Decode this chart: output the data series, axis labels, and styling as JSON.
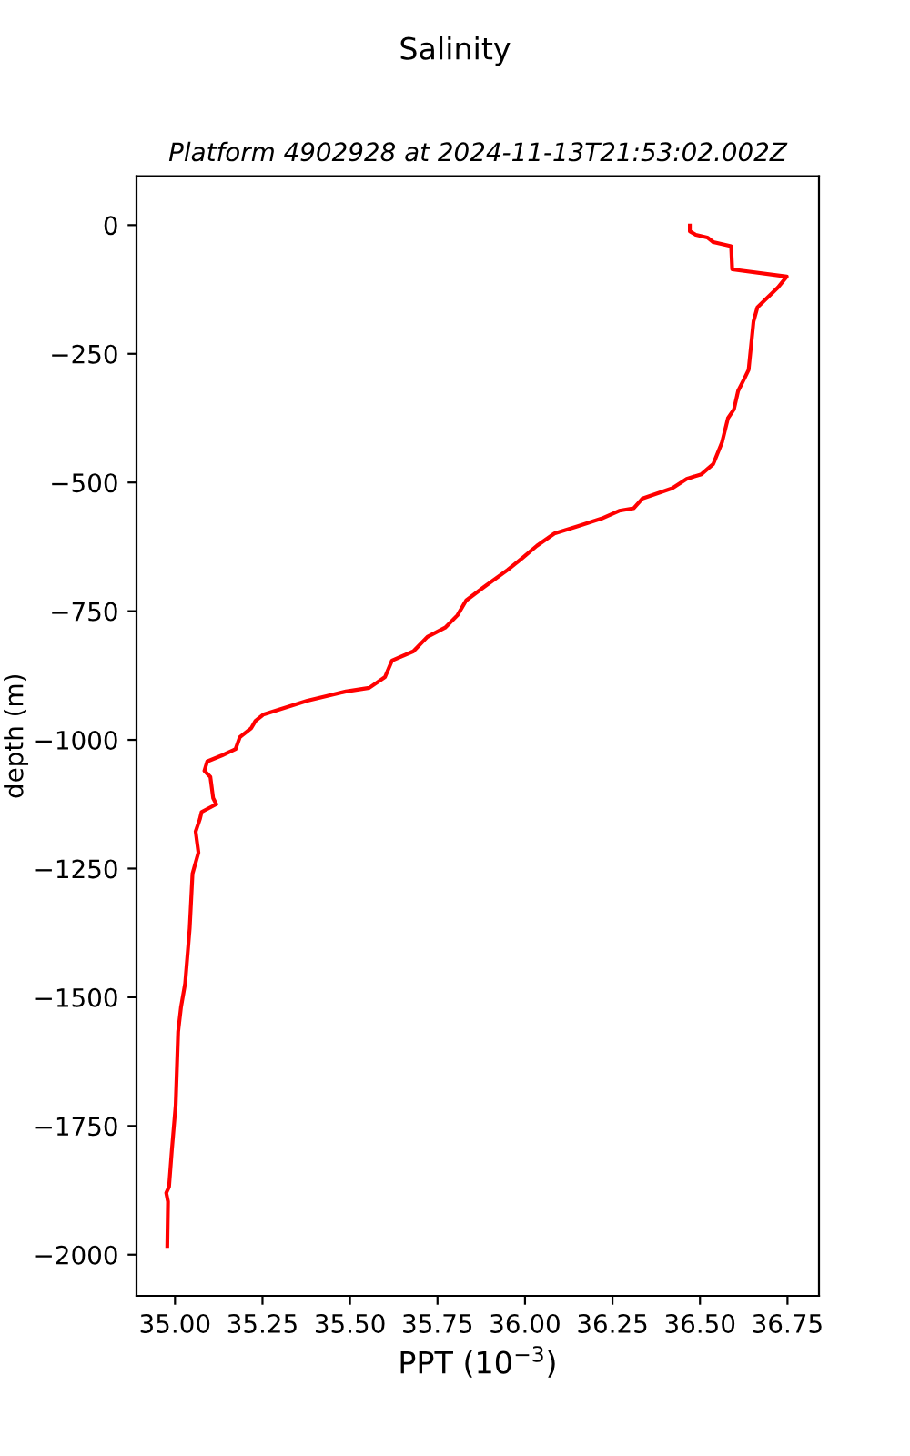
{
  "chart_data": {
    "type": "line",
    "title": "Salinity",
    "subtitle": "Platform 4902928 at 2024-11-13T21:53:02.002Z",
    "xlabel": "PPT (10$^{−3}$)",
    "ylabel": "depth (m)",
    "series": [
      {
        "color": "#ff0000",
        "x": [
          36.471,
          36.471,
          36.488,
          36.521,
          36.538,
          36.589,
          36.592,
          36.748,
          36.723,
          36.664,
          36.653,
          36.639,
          36.627,
          36.609,
          36.597,
          36.58,
          36.563,
          36.538,
          36.504,
          36.462,
          36.421,
          36.336,
          36.311,
          36.269,
          36.219,
          36.151,
          36.084,
          36.034,
          35.992,
          35.95,
          35.883,
          35.832,
          35.807,
          35.772,
          35.721,
          35.681,
          35.62,
          35.6,
          35.555,
          35.488,
          35.378,
          35.252,
          35.23,
          35.218,
          35.185,
          35.173,
          35.135,
          35.092,
          35.084,
          35.101,
          35.109,
          35.118,
          35.076,
          35.071,
          35.059,
          35.067,
          35.05,
          35.042,
          35.029,
          35.017,
          35.009,
          35.002,
          34.991,
          34.983,
          34.975,
          34.98,
          34.978
        ],
        "values": [
          -1,
          -12,
          -19,
          -24,
          -33,
          -41,
          -86,
          -100,
          -121,
          -160,
          -187,
          -281,
          -298,
          -322,
          -358,
          -375,
          -422,
          -464,
          -484,
          -493,
          -511,
          -531,
          -550,
          -555,
          -570,
          -585,
          -599,
          -623,
          -647,
          -670,
          -703,
          -729,
          -758,
          -782,
          -800,
          -828,
          -846,
          -878,
          -899,
          -906,
          -924,
          -951,
          -963,
          -977,
          -995,
          -1018,
          -1030,
          -1042,
          -1060,
          -1072,
          -1113,
          -1125,
          -1140,
          -1154,
          -1178,
          -1219,
          -1260,
          -1366,
          -1473,
          -1520,
          -1567,
          -1709,
          -1797,
          -1868,
          -1880,
          -1897,
          -1983
        ]
      }
    ],
    "xlim": [
      34.89,
      36.84
    ],
    "ylim": [
      -2080,
      95
    ],
    "xticks": [
      {
        "value": 35.0,
        "label": "35.00"
      },
      {
        "value": 35.25,
        "label": "35.25"
      },
      {
        "value": 35.5,
        "label": "35.50"
      },
      {
        "value": 35.75,
        "label": "35.75"
      },
      {
        "value": 36.0,
        "label": "36.00"
      },
      {
        "value": 36.25,
        "label": "36.25"
      },
      {
        "value": 36.5,
        "label": "36.50"
      },
      {
        "value": 36.75,
        "label": "36.75"
      }
    ],
    "yticks": [
      0,
      {
        "value": -250,
        "label": "−250"
      },
      {
        "value": -500,
        "label": "−500"
      },
      {
        "value": -750,
        "label": "−750"
      },
      {
        "value": -1000,
        "label": "−1000"
      },
      {
        "value": -1250,
        "label": "−1250"
      },
      {
        "value": -1500,
        "label": "−1500"
      },
      {
        "value": -1750,
        "label": "−1750"
      },
      {
        "value": -2000,
        "label": "−2000"
      }
    ],
    "grid": false,
    "legend": false,
    "marker": "none",
    "line_style": "solid"
  }
}
